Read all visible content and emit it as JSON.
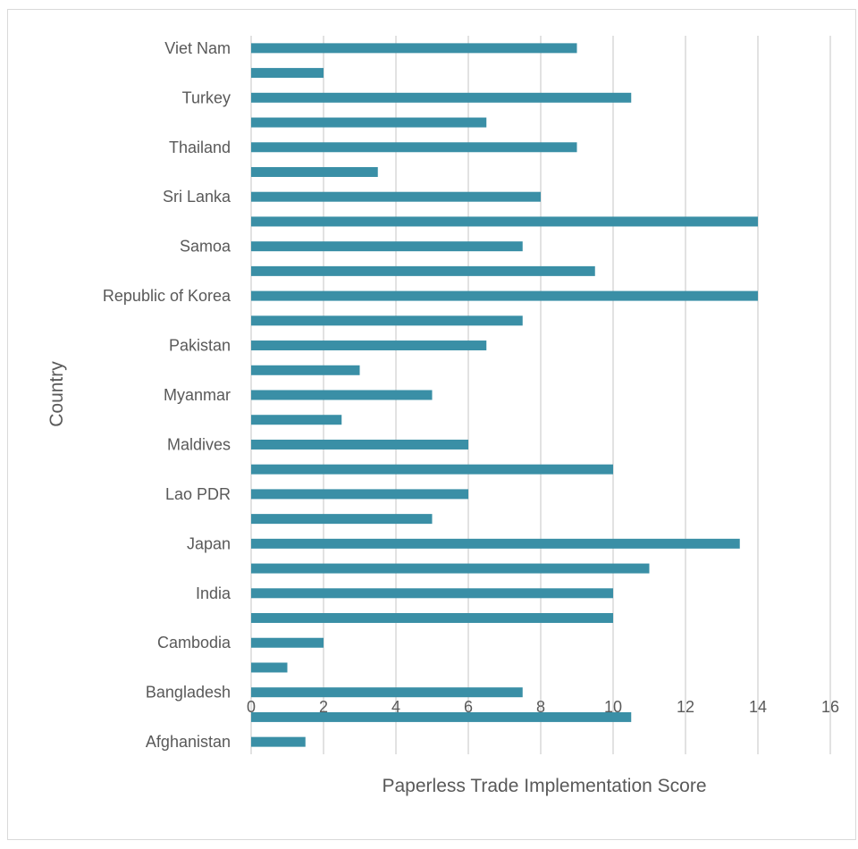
{
  "chart_data": {
    "type": "bar",
    "orientation": "horizontal",
    "title": "",
    "xlabel": "Paperless Trade Implementation Score",
    "ylabel": "Country",
    "xlim": [
      0,
      16
    ],
    "xticks": [
      0,
      2,
      4,
      6,
      8,
      10,
      12,
      14,
      16
    ],
    "grid": "vertical",
    "legend": "none",
    "bar_color": "#3a8fa6",
    "grid_color": "#d9d9d9",
    "text_color": "#595959",
    "categories": [
      "Viet Nam",
      "",
      "Turkey",
      "",
      "Thailand",
      "",
      "Sri Lanka",
      "",
      "Samoa",
      "",
      "Republic of Korea",
      "",
      "Pakistan",
      "",
      "Myanmar",
      "",
      "Maldives",
      "",
      "Lao PDR",
      "",
      "Japan",
      "",
      "India",
      "",
      "Cambodia",
      "",
      "Bangladesh",
      "",
      "Afghanistan"
    ],
    "values": [
      9,
      2,
      10.5,
      6.5,
      9,
      3.5,
      8,
      14,
      7.5,
      9.5,
      14,
      7.5,
      6.5,
      3,
      5,
      2.5,
      6,
      10,
      6,
      5,
      13.5,
      11,
      10,
      10,
      2,
      1,
      7.5,
      10.5,
      1.5
    ]
  }
}
